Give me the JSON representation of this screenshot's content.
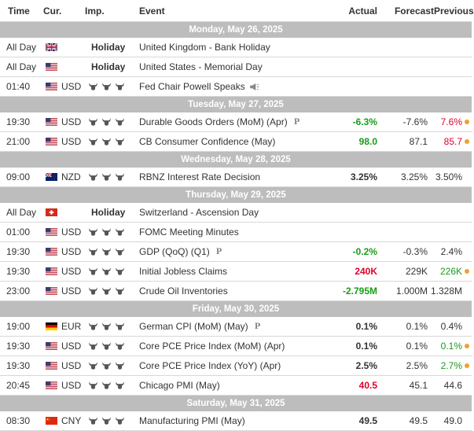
{
  "header": {
    "time": "Time",
    "currency": "Cur.",
    "importance": "Imp.",
    "event": "Event",
    "actual": "Actual",
    "forecast": "Forecast",
    "previous": "Previous"
  },
  "colors": {
    "day_bar": "#bdbdbd",
    "positive": "#1a9b1a",
    "negative": "#e0002a",
    "highlight_dot": "#f0a030"
  },
  "days": [
    {
      "label": "Monday, May 26, 2025",
      "events": [
        {
          "time": "All Day",
          "flag": "uk-flag",
          "currency": "",
          "holiday": "Holiday",
          "event": "United Kingdom - Bank Holiday"
        },
        {
          "time": "All Day",
          "flag": "us-flag",
          "currency": "",
          "holiday": "Holiday",
          "event": "United States - Memorial Day"
        },
        {
          "time": "01:40",
          "flag": "us-flag",
          "currency": "USD",
          "bulls": 3,
          "event": "Fed Chair Powell Speaks",
          "speech": true
        }
      ]
    },
    {
      "label": "Tuesday, May 27, 2025",
      "events": [
        {
          "time": "19:30",
          "flag": "us-flag",
          "currency": "USD",
          "bulls": 3,
          "event": "Durable Goods Orders (MoM) (Apr)",
          "prelim": "P",
          "actual": "-6.3%",
          "actual_color": "green",
          "forecast": "-7.6%",
          "previous": "7.6%",
          "previous_color": "red",
          "dot": true
        },
        {
          "time": "21:00",
          "flag": "us-flag",
          "currency": "USD",
          "bulls": 3,
          "event": "CB Consumer Confidence (May)",
          "actual": "98.0",
          "actual_color": "green",
          "forecast": "87.1",
          "previous": "85.7",
          "previous_color": "red",
          "dot": true
        }
      ]
    },
    {
      "label": "Wednesday, May 28, 2025",
      "events": [
        {
          "time": "09:00",
          "flag": "nz-flag",
          "currency": "NZD",
          "bulls": 3,
          "event": "RBNZ Interest Rate Decision",
          "actual": "3.25%",
          "actual_color": "",
          "forecast": "3.25%",
          "previous": "3.50%",
          "previous_color": ""
        }
      ]
    },
    {
      "label": "Thursday, May 29, 2025",
      "events": [
        {
          "time": "All Day",
          "flag": "ch-flag",
          "currency": "",
          "holiday": "Holiday",
          "event": "Switzerland - Ascension Day"
        },
        {
          "time": "01:00",
          "flag": "us-flag",
          "currency": "USD",
          "bulls": 3,
          "event": "FOMC Meeting Minutes"
        },
        {
          "time": "19:30",
          "flag": "us-flag",
          "currency": "USD",
          "bulls": 3,
          "event": "GDP (QoQ) (Q1)",
          "prelim": "P",
          "actual": "-0.2%",
          "actual_color": "green",
          "forecast": "-0.3%",
          "previous": "2.4%",
          "previous_color": ""
        },
        {
          "time": "19:30",
          "flag": "us-flag",
          "currency": "USD",
          "bulls": 3,
          "event": "Initial Jobless Claims",
          "actual": "240K",
          "actual_color": "red",
          "forecast": "229K",
          "previous": "226K",
          "previous_color": "green",
          "dot": true
        },
        {
          "time": "23:00",
          "flag": "us-flag",
          "currency": "USD",
          "bulls": 3,
          "event": "Crude Oil Inventories",
          "actual": "-2.795M",
          "actual_color": "green",
          "forecast": "1.000M",
          "previous": "1.328M",
          "previous_color": ""
        }
      ]
    },
    {
      "label": "Friday, May 30, 2025",
      "events": [
        {
          "time": "19:00",
          "flag": "de-flag",
          "currency": "EUR",
          "bulls": 3,
          "event": "German CPI (MoM) (May)",
          "prelim": "P",
          "actual": "0.1%",
          "actual_color": "",
          "forecast": "0.1%",
          "previous": "0.4%",
          "previous_color": ""
        },
        {
          "time": "19:30",
          "flag": "us-flag",
          "currency": "USD",
          "bulls": 3,
          "event": "Core PCE Price Index (MoM) (Apr)",
          "actual": "0.1%",
          "actual_color": "",
          "forecast": "0.1%",
          "previous": "0.1%",
          "previous_color": "green",
          "dot": true
        },
        {
          "time": "19:30",
          "flag": "us-flag",
          "currency": "USD",
          "bulls": 3,
          "event": "Core PCE Price Index (YoY) (Apr)",
          "actual": "2.5%",
          "actual_color": "",
          "forecast": "2.5%",
          "previous": "2.7%",
          "previous_color": "green",
          "dot": true
        },
        {
          "time": "20:45",
          "flag": "us-flag",
          "currency": "USD",
          "bulls": 3,
          "event": "Chicago PMI (May)",
          "actual": "40.5",
          "actual_color": "red",
          "forecast": "45.1",
          "previous": "44.6",
          "previous_color": ""
        }
      ]
    },
    {
      "label": "Saturday, May 31, 2025",
      "events": [
        {
          "time": "08:30",
          "flag": "cn-flag",
          "currency": "CNY",
          "bulls": 3,
          "event": "Manufacturing PMI (May)",
          "actual": "49.5",
          "actual_color": "",
          "forecast": "49.5",
          "previous": "49.0",
          "previous_color": ""
        }
      ]
    }
  ]
}
